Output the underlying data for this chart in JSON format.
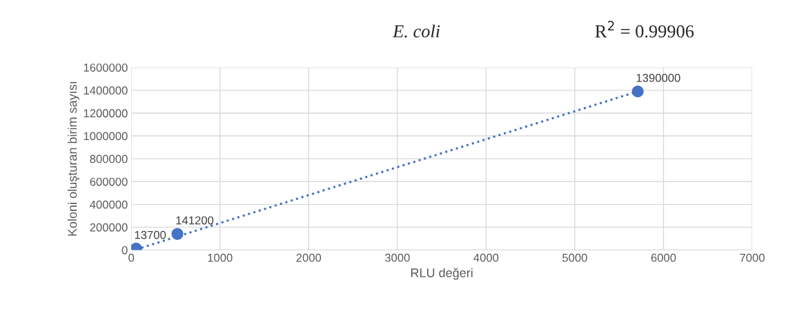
{
  "chart_data": {
    "type": "scatter",
    "title": "E. coli",
    "xlabel": "RLU değeri",
    "ylabel": "Koloni oluşturan birim sayısı",
    "annotations": [
      "R$^{2}$ = 0.99906"
    ],
    "series": [
      {
        "color": "#4472c4",
        "x": [
          55,
          520,
          5710
        ],
        "values": [
          13700,
          141200,
          1390000
        ],
        "value_labels": [
          "13700",
          "141200",
          "1390000"
        ],
        "marker": "circle"
      },
      {
        "type": "line",
        "color": "#4472c4",
        "x": [
          55,
          5710
        ],
        "values": [
          5000,
          1390000
        ],
        "line_style": "dotted"
      }
    ],
    "xlim": [
      0,
      7000
    ],
    "xticks": [
      0,
      1000,
      2000,
      3000,
      4000,
      5000,
      6000,
      7000
    ],
    "ylim": [
      0,
      1600000
    ],
    "yticks": [
      0,
      200000,
      400000,
      600000,
      800000,
      1000000,
      1200000,
      1400000,
      1600000
    ],
    "grid": true
  }
}
